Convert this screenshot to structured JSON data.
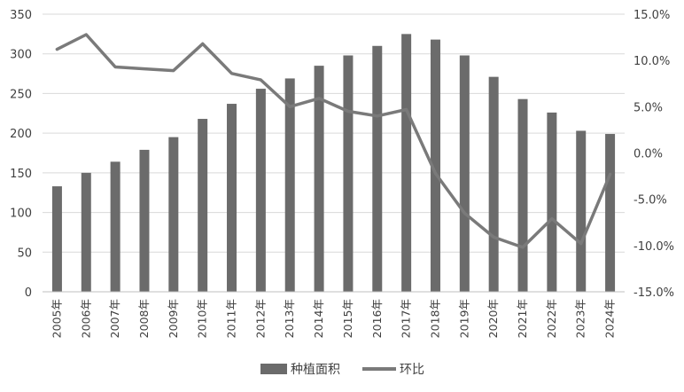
{
  "chart_data": {
    "type": "bar",
    "categories": [
      "2005年",
      "2006年",
      "2007年",
      "2008年",
      "2009年",
      "2010年",
      "2011年",
      "2012年",
      "2013年",
      "2014年",
      "2015年",
      "2016年",
      "2017年",
      "2018年",
      "2019年",
      "2020年",
      "2021年",
      "2022年",
      "2023年",
      "2024年"
    ],
    "series": [
      {
        "name": "种植面积",
        "type": "bar",
        "axis": "left",
        "color": "#6b6b6b",
        "values": [
          133,
          150,
          164,
          179,
          195,
          218,
          237,
          256,
          269,
          285,
          298,
          310,
          325,
          318,
          298,
          271,
          243,
          226,
          203,
          199
        ]
      },
      {
        "name": "环比",
        "type": "line",
        "axis": "right",
        "color": "#7a7a7a",
        "values": [
          11.2,
          12.8,
          9.3,
          9.1,
          8.9,
          11.8,
          8.6,
          7.9,
          5.0,
          5.9,
          4.5,
          4.0,
          4.7,
          -2.2,
          -6.5,
          -9.1,
          -10.2,
          -7.1,
          -9.8,
          -2.3
        ]
      }
    ],
    "y_left": {
      "min": 0,
      "max": 350,
      "step": 50,
      "ticks": [
        "0",
        "50",
        "100",
        "150",
        "200",
        "250",
        "300",
        "350"
      ]
    },
    "y_right": {
      "min": -15,
      "max": 15,
      "step": 5,
      "ticks": [
        "-15.0%",
        "-10.0%",
        "-5.0%",
        "0.0%",
        "5.0%",
        "10.0%",
        "15.0%"
      ]
    },
    "grid": true,
    "legend_position": "bottom"
  }
}
